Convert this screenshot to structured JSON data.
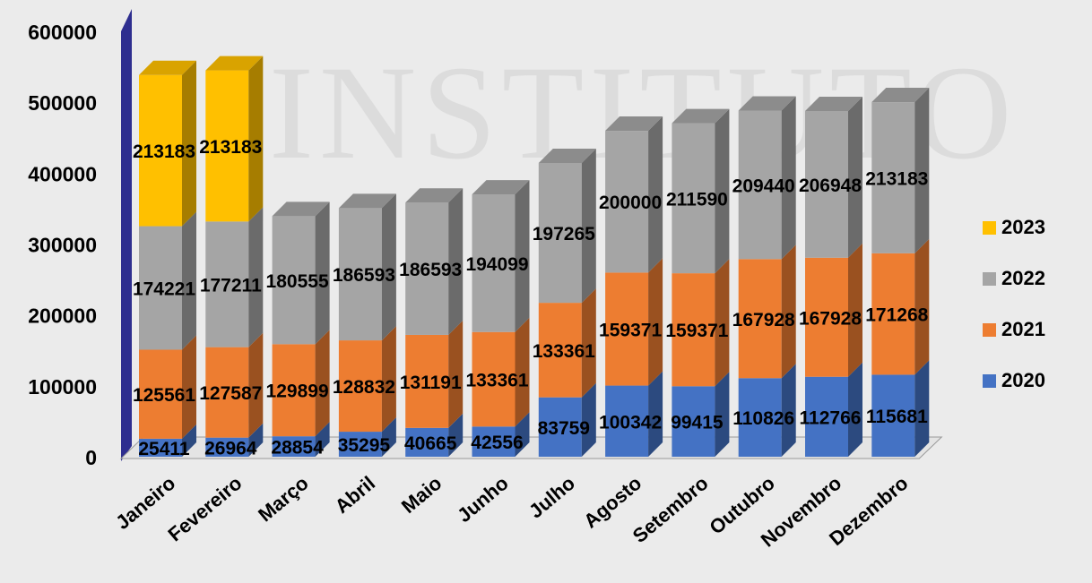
{
  "watermark": "INSTITUTO",
  "chart_data": {
    "type": "bar",
    "stacked": true,
    "style": "3d",
    "categories": [
      "Janeiro",
      "Fevereiro",
      "Março",
      "Abril",
      "Maio",
      "Junho",
      "Julho",
      "Agosto",
      "Setembro",
      "Outubro",
      "Novembro",
      "Dezembro"
    ],
    "series": [
      {
        "name": "2020",
        "color": "#4472c4",
        "values": [
          25411,
          26964,
          28854,
          35295,
          40665,
          42556,
          83759,
          100342,
          99415,
          110826,
          112766,
          115681
        ]
      },
      {
        "name": "2021",
        "color": "#ed7d31",
        "values": [
          125561,
          127587,
          129899,
          128832,
          131191,
          133361,
          133361,
          159371,
          159371,
          167928,
          167928,
          171268
        ]
      },
      {
        "name": "2022",
        "color": "#a5a5a5",
        "values": [
          174221,
          177211,
          180555,
          186593,
          186593,
          194099,
          197265,
          200000,
          211590,
          209440,
          206948,
          213183
        ]
      },
      {
        "name": "2023",
        "color": "#ffc000",
        "values": [
          213183,
          213183,
          null,
          null,
          null,
          null,
          null,
          null,
          null,
          null,
          null,
          null
        ]
      }
    ],
    "yticks": [
      0,
      100000,
      200000,
      300000,
      400000,
      500000,
      600000
    ],
    "ylim": [
      0,
      600000
    ],
    "legend_position": "right",
    "grid": false
  }
}
